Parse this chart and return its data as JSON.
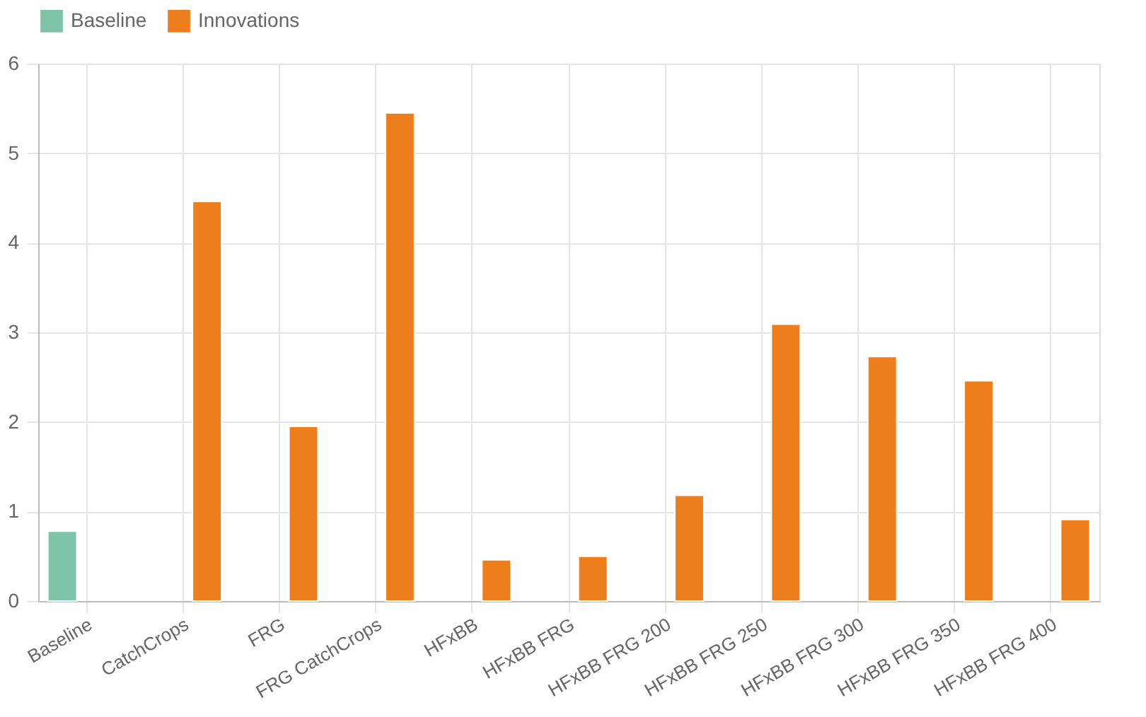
{
  "chart_data": {
    "type": "bar",
    "categories": [
      "Baseline",
      "CatchCrops",
      "FRG",
      "FRG CatchCrops",
      "HFxBB",
      "HFxBB FRG",
      "HFxBB FRG 200",
      "HFxBB FRG 250",
      "HFxBB FRG 300",
      "HFxBB FRG 350",
      "HFxBB FRG 400"
    ],
    "series": [
      {
        "name": "Baseline",
        "color": "#7cc3a9",
        "values": [
          0.78,
          null,
          null,
          null,
          null,
          null,
          null,
          null,
          null,
          null,
          null
        ]
      },
      {
        "name": "Innovations",
        "color": "#ee7d1b",
        "values": [
          null,
          4.46,
          1.95,
          5.45,
          0.46,
          0.5,
          1.18,
          3.09,
          2.73,
          2.46,
          0.91
        ]
      }
    ],
    "ylim": [
      0,
      6
    ],
    "yticks": [
      0,
      1,
      2,
      3,
      4,
      5,
      6
    ],
    "grid": true,
    "legend": "top"
  }
}
